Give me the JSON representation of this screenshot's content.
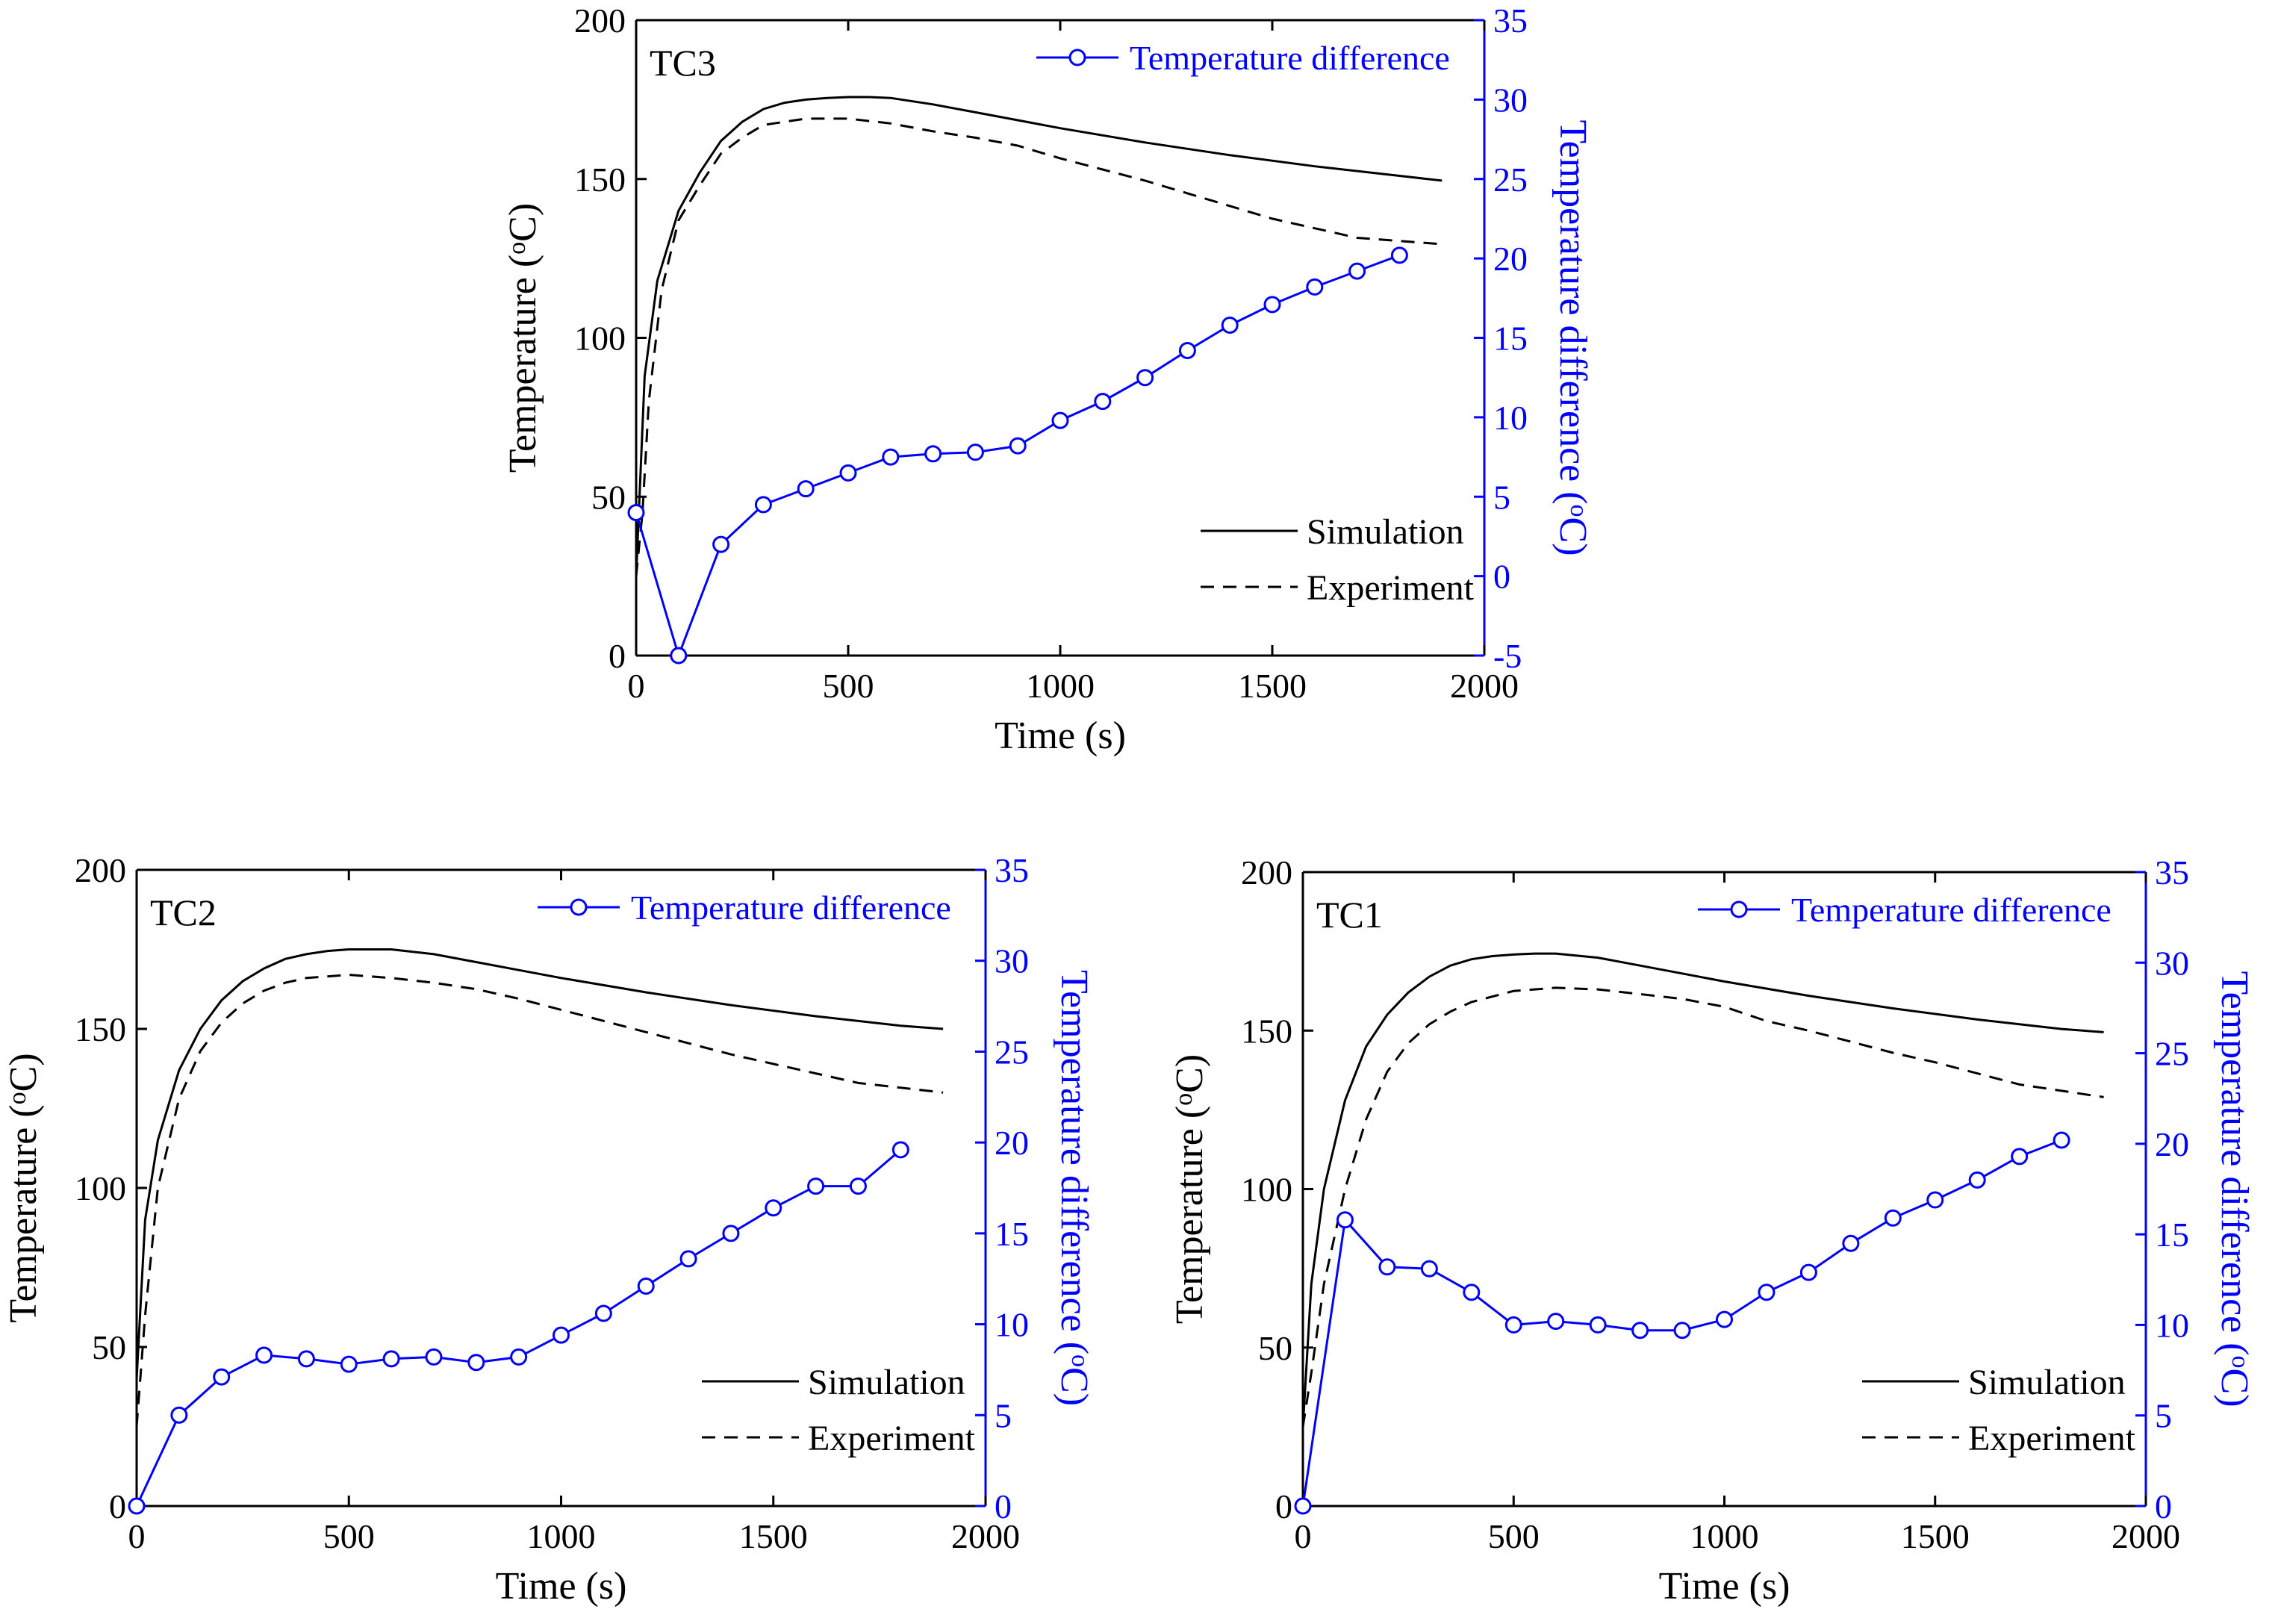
{
  "chart_data": [
    {
      "type": "line",
      "panel": "TC3",
      "title": "TC3",
      "xlabel": "Time (s)",
      "ylabel": "Temperature (°C)",
      "y2label": "Temperature difference (°C)",
      "xlim": [
        0,
        2000
      ],
      "ylim": [
        0,
        200
      ],
      "y2lim": [
        -5,
        35
      ],
      "xticks": [
        0,
        500,
        1000,
        1500,
        2000
      ],
      "yticks": [
        0,
        50,
        100,
        150,
        200
      ],
      "y2ticks": [
        -5,
        0,
        5,
        10,
        15,
        20,
        25,
        30,
        35
      ],
      "series": [
        {
          "name": "Simulation",
          "axis": "left",
          "style": "solid",
          "x": [
            0,
            20,
            50,
            100,
            150,
            200,
            250,
            300,
            350,
            400,
            450,
            500,
            550,
            600,
            700,
            800,
            900,
            1000,
            1200,
            1400,
            1600,
            1800,
            1900
          ],
          "y": [
            25,
            88,
            118,
            140,
            152,
            162,
            168,
            172,
            174,
            175,
            175.5,
            175.8,
            175.8,
            175.5,
            173.5,
            171,
            168.5,
            166,
            161.5,
            157.5,
            154,
            151,
            149.5
          ]
        },
        {
          "name": "Experiment",
          "axis": "left",
          "style": "dashed",
          "x": [
            0,
            15,
            30,
            60,
            100,
            150,
            200,
            250,
            300,
            400,
            500,
            600,
            700,
            800,
            900,
            1000,
            1100,
            1200,
            1300,
            1400,
            1500,
            1600,
            1700,
            1800,
            1900
          ],
          "y": [
            25,
            45,
            80,
            115,
            137,
            148,
            158,
            163,
            167,
            169,
            169,
            167.5,
            165,
            163,
            160.5,
            156.5,
            153,
            149.5,
            145.5,
            141.5,
            137.5,
            134.5,
            131.5,
            130.5,
            129.5
          ]
        },
        {
          "name": "Temperature difference",
          "axis": "right",
          "style": "marker-line",
          "x": [
            0,
            100,
            200,
            300,
            400,
            500,
            600,
            700,
            800,
            900,
            1000,
            1100,
            1200,
            1300,
            1400,
            1500,
            1600,
            1700,
            1800
          ],
          "y": [
            4,
            -5,
            2,
            4.5,
            5.5,
            6.5,
            7.5,
            7.7,
            7.8,
            8.2,
            9.8,
            11,
            12.5,
            14.2,
            15.8,
            17.1,
            18.2,
            19.2,
            20.2
          ]
        }
      ],
      "legend": {
        "line_label": "Temperature difference",
        "sim_label": "Simulation",
        "exp_label": "Experiment"
      }
    },
    {
      "type": "line",
      "panel": "TC2",
      "title": "TC2",
      "xlabel": "Time (s)",
      "ylabel": "Temperature (°C)",
      "y2label": "Temperature difference (°C)",
      "xlim": [
        0,
        2000
      ],
      "ylim": [
        0,
        200
      ],
      "y2lim": [
        0,
        35
      ],
      "xticks": [
        0,
        500,
        1000,
        1500,
        2000
      ],
      "yticks": [
        0,
        50,
        100,
        150,
        200
      ],
      "y2ticks": [
        0,
        5,
        10,
        15,
        20,
        25,
        30,
        35
      ],
      "series": [
        {
          "name": "Simulation",
          "axis": "left",
          "style": "solid",
          "x": [
            0,
            20,
            50,
            100,
            150,
            200,
            250,
            300,
            350,
            400,
            450,
            500,
            550,
            600,
            700,
            800,
            900,
            1000,
            1200,
            1400,
            1600,
            1800,
            1900
          ],
          "y": [
            40,
            90,
            115,
            137,
            150,
            159,
            165,
            169,
            172,
            173.5,
            174.5,
            175,
            175,
            175,
            173.5,
            171,
            168.5,
            166,
            161.5,
            157.5,
            154,
            151,
            150
          ]
        },
        {
          "name": "Experiment",
          "axis": "left",
          "style": "dashed",
          "x": [
            0,
            20,
            50,
            100,
            150,
            200,
            250,
            300,
            350,
            400,
            500,
            600,
            700,
            800,
            900,
            1000,
            1100,
            1200,
            1300,
            1400,
            1500,
            1600,
            1700,
            1800,
            1900
          ],
          "y": [
            25,
            60,
            100,
            128,
            143,
            152,
            158,
            162,
            164.5,
            166,
            167,
            166,
            164.5,
            162.5,
            159.5,
            156,
            152.5,
            149,
            145.5,
            142,
            139,
            136,
            133,
            131.5,
            130
          ]
        },
        {
          "name": "Temperature difference",
          "axis": "right",
          "style": "marker-line",
          "x": [
            0,
            100,
            200,
            300,
            400,
            500,
            600,
            700,
            800,
            900,
            1000,
            1100,
            1200,
            1300,
            1400,
            1500,
            1600,
            1700,
            1800
          ],
          "y": [
            0,
            5,
            7.1,
            8.3,
            8.1,
            7.8,
            8.1,
            8.2,
            7.9,
            8.2,
            9.4,
            10.6,
            12.1,
            13.6,
            15,
            16.4,
            17.6,
            17.6,
            19.6
          ]
        }
      ],
      "legend": {
        "line_label": "Temperature difference",
        "sim_label": "Simulation",
        "exp_label": "Experiment"
      }
    },
    {
      "type": "line",
      "panel": "TC1",
      "title": "TC1",
      "xlabel": "Time (s)",
      "ylabel": "Temperature (°C)",
      "y2label": "Temperature difference (°C)",
      "xlim": [
        0,
        2000
      ],
      "ylim": [
        0,
        200
      ],
      "y2lim": [
        0,
        35
      ],
      "xticks": [
        0,
        500,
        1000,
        1500,
        2000
      ],
      "yticks": [
        0,
        50,
        100,
        150,
        200
      ],
      "y2ticks": [
        0,
        5,
        10,
        15,
        20,
        25,
        30,
        35
      ],
      "series": [
        {
          "name": "Simulation",
          "axis": "left",
          "style": "solid",
          "x": [
            0,
            20,
            50,
            100,
            150,
            200,
            250,
            300,
            350,
            400,
            450,
            500,
            550,
            600,
            700,
            800,
            900,
            1000,
            1200,
            1400,
            1600,
            1800,
            1900
          ],
          "y": [
            25,
            70,
            100,
            128,
            145,
            155,
            162,
            167,
            170.5,
            172.5,
            173.5,
            174,
            174.3,
            174.3,
            173,
            170.5,
            168,
            165.5,
            161,
            157,
            153.5,
            150.5,
            149.5
          ]
        },
        {
          "name": "Experiment",
          "axis": "left",
          "style": "dashed",
          "x": [
            0,
            20,
            50,
            100,
            150,
            200,
            250,
            300,
            350,
            400,
            500,
            600,
            700,
            800,
            900,
            1000,
            1100,
            1200,
            1300,
            1400,
            1500,
            1600,
            1700,
            1800,
            1900
          ],
          "y": [
            25,
            42,
            70,
            100,
            122,
            137,
            146,
            152,
            156,
            159,
            162.5,
            163.5,
            163,
            161.5,
            160,
            157.5,
            153,
            150,
            146.5,
            143,
            140,
            136.5,
            133,
            131,
            129
          ]
        },
        {
          "name": "Temperature difference",
          "axis": "right",
          "style": "marker-line",
          "x": [
            0,
            100,
            200,
            300,
            400,
            500,
            600,
            700,
            800,
            900,
            1000,
            1100,
            1200,
            1300,
            1400,
            1500,
            1600,
            1700,
            1800
          ],
          "y": [
            0,
            15.8,
            13.2,
            13.1,
            11.8,
            10,
            10.2,
            10,
            9.7,
            9.7,
            10.3,
            11.8,
            12.9,
            14.5,
            15.9,
            16.9,
            18,
            19.3,
            20.2
          ]
        }
      ],
      "legend": {
        "line_label": "Temperature difference",
        "sim_label": "Simulation",
        "exp_label": "Experiment"
      }
    }
  ]
}
